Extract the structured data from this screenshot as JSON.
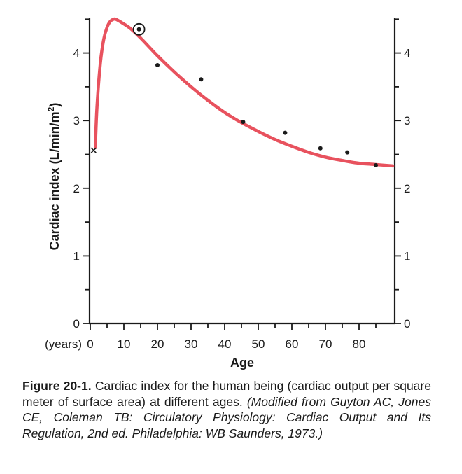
{
  "chart_data": {
    "type": "line",
    "xlabel": "Age",
    "x_unit_label": "(years)",
    "ylabel": "Cardiac index (L/min/m",
    "ylabel_superscript": "2",
    "ylabel_close": ")",
    "xlim": [
      0,
      90
    ],
    "ylim": [
      0,
      4.5
    ],
    "x_ticks": [
      0,
      10,
      20,
      30,
      40,
      50,
      60,
      70,
      80
    ],
    "y_ticks": [
      0,
      1,
      2,
      3,
      4
    ],
    "curve_color": "#e8525e",
    "series": [
      {
        "kind": "fitted-curve",
        "x": [
          1.5,
          2,
          3,
          4,
          5,
          6,
          7,
          7.5,
          8,
          10,
          12,
          15,
          20,
          25,
          30,
          35,
          40,
          45,
          50,
          55,
          60,
          65,
          70,
          75,
          80,
          85,
          90
        ],
        "y": [
          2.6,
          3.2,
          3.85,
          4.2,
          4.38,
          4.47,
          4.5,
          4.5,
          4.49,
          4.43,
          4.36,
          4.22,
          3.96,
          3.72,
          3.5,
          3.3,
          3.12,
          2.97,
          2.84,
          2.72,
          2.62,
          2.53,
          2.46,
          2.41,
          2.37,
          2.35,
          2.33
        ]
      },
      {
        "kind": "measured-points",
        "x": [
          20,
          33,
          45.5,
          58,
          68.5,
          76.5,
          85
        ],
        "y": [
          3.82,
          3.61,
          2.98,
          2.82,
          2.59,
          2.53,
          2.34
        ]
      }
    ],
    "special_points": [
      {
        "marker": "cross",
        "x": 1,
        "y": 2.56
      },
      {
        "marker": "circled-dot",
        "x": 14.5,
        "y": 4.35
      }
    ]
  },
  "caption": {
    "label": "Figure 20-1.",
    "text": " Cardiac index for the human being (cardiac output per square meter of surface area) at different ages. ",
    "source": "(Modified from Guyton AC, Jones CE, Coleman TB: Circulatory Physiology: Cardiac Output and Its Regulation, 2nd ed. Philadelphia: WB Saunders, 1973.)"
  }
}
